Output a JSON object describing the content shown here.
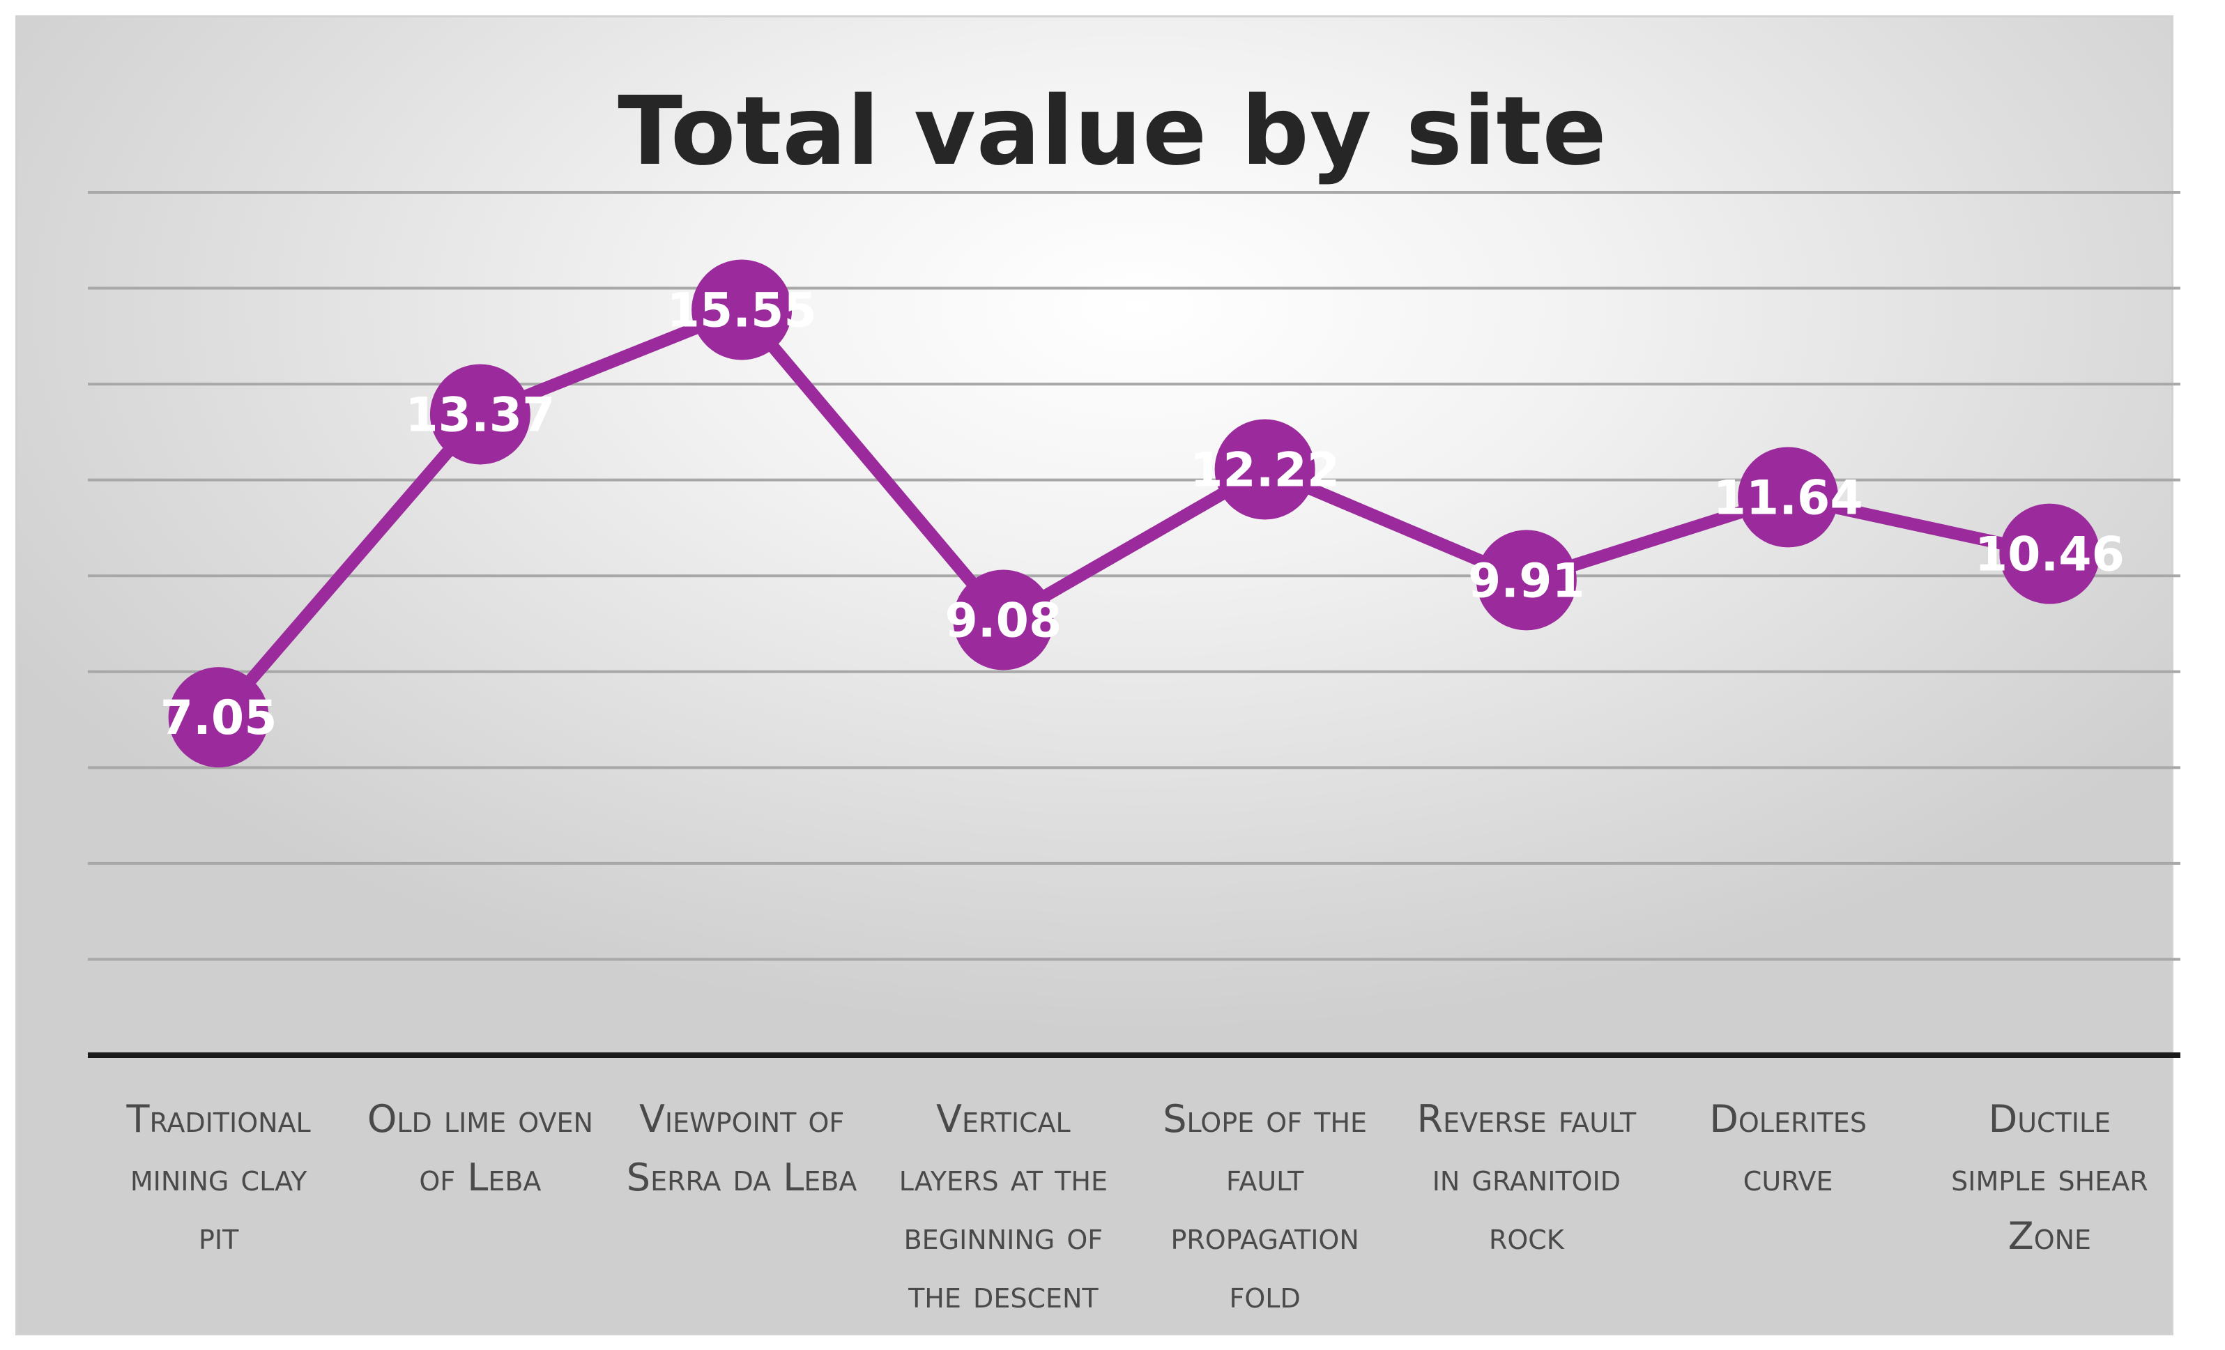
{
  "chart_data": {
    "type": "line",
    "title": "Total value by site",
    "categories": [
      [
        "Traditional",
        "mining clay",
        "pit"
      ],
      [
        "Old lime oven",
        "of Leba"
      ],
      [
        "Viewpoint of",
        "Serra da Leba"
      ],
      [
        "Vertical",
        "layers at the",
        "beginning of",
        "the descent"
      ],
      [
        "Slope of the",
        "fault",
        "propagation",
        "fold"
      ],
      [
        "Reverse fault",
        "in granitoid",
        "rock"
      ],
      [
        "Dolerites",
        "curve"
      ],
      [
        "Ductile",
        "simple shear",
        "Zone"
      ]
    ],
    "values": [
      7.05,
      13.37,
      15.55,
      9.08,
      12.22,
      9.91,
      11.64,
      10.46
    ],
    "data_labels": [
      "7.05",
      "13.37",
      "15.55",
      "9.08",
      "12.22",
      "9.91",
      "11.64",
      "10.46"
    ],
    "ylim": [
      0,
      18
    ],
    "gridline_step": 2,
    "grid": true,
    "legend": "none",
    "colors": {
      "series": "#9b2a9c",
      "gridline": "#a8a8a8",
      "baseline": "#1a1a1a"
    }
  }
}
